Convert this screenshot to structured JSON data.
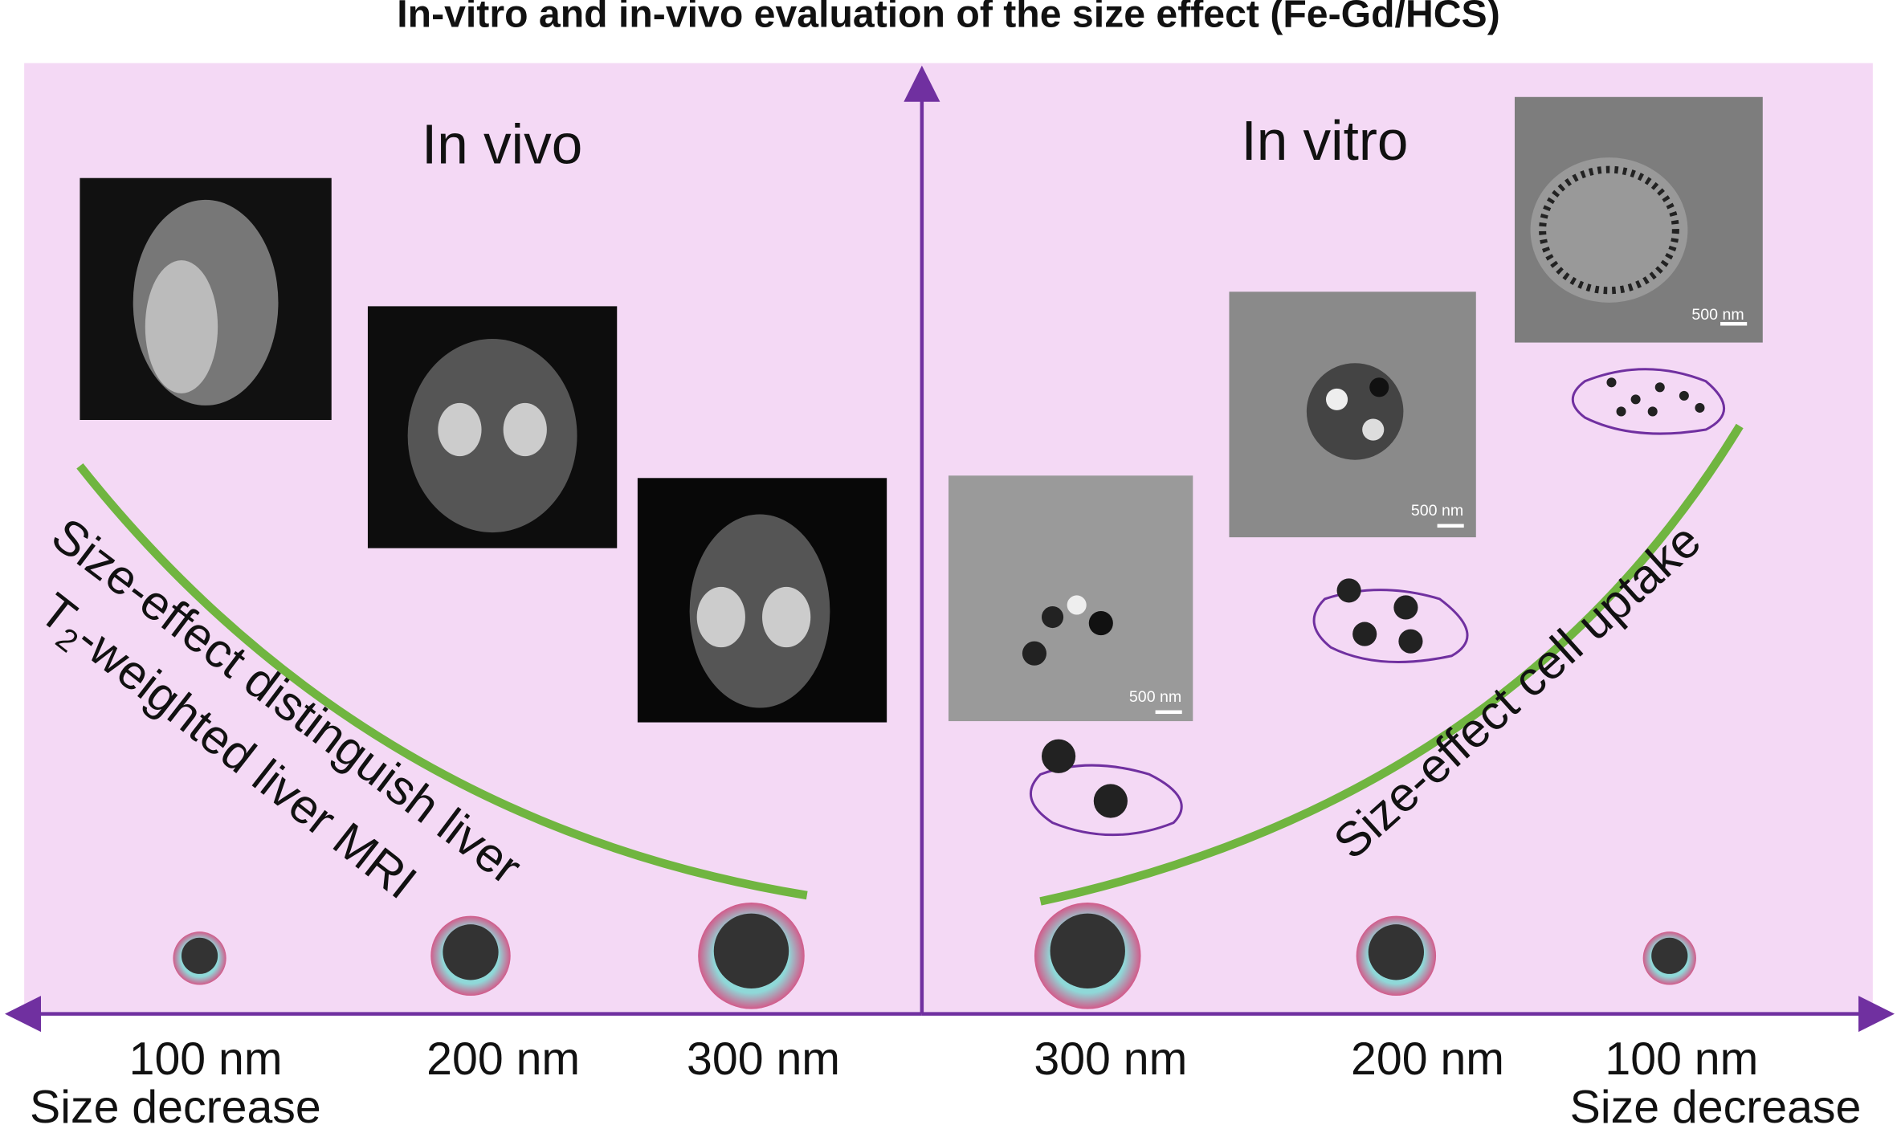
{
  "title": "In-vitro and in-vivo evaluation of the size effect (Fe-Gd/HCS)",
  "in_vivo": {
    "label": "In vivo",
    "curve_label": "Size-effect  distinguish liver",
    "curve_label_2": {
      "main": "T",
      "sub": "2",
      "rest": "-weighted liver MRI"
    },
    "sizes": [
      "100 nm",
      "200 nm",
      "300 nm"
    ],
    "axis_label": "Size decrease"
  },
  "in_vitro": {
    "label": "In vitro",
    "curve_label": "Size-effect  cell uptake",
    "sizes": [
      "300 nm",
      "200 nm",
      "100 nm"
    ],
    "axis_label": "Size decrease",
    "scale_bars": [
      "500 nm",
      "500 nm",
      "500 nm"
    ]
  }
}
